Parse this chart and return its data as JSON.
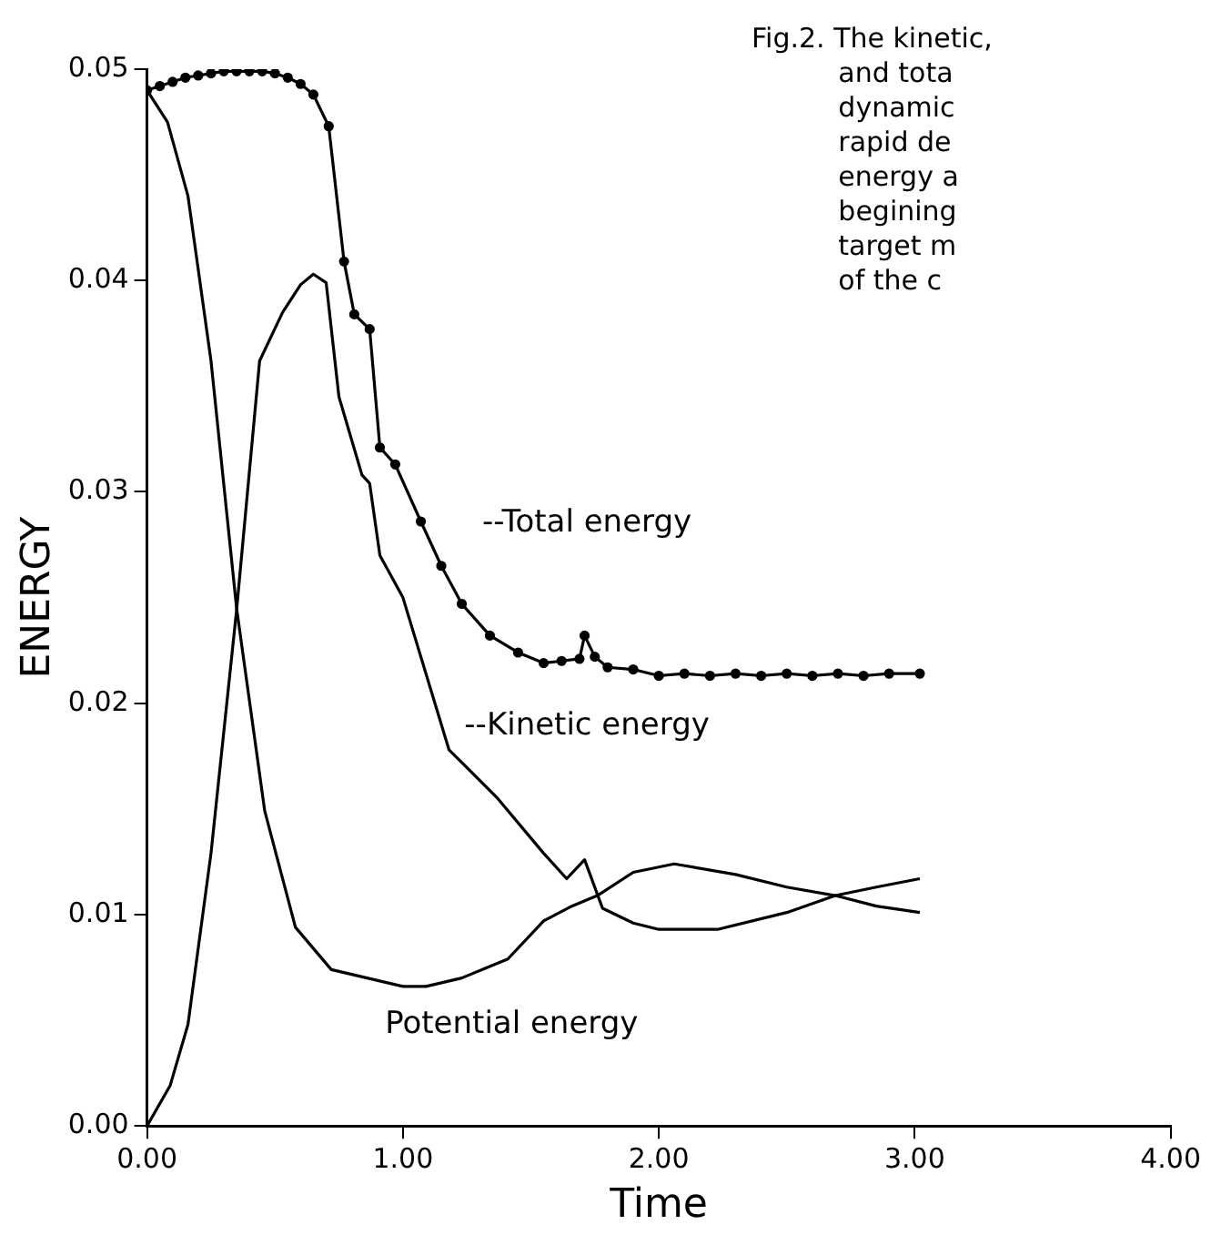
{
  "chart_data": {
    "type": "line",
    "xlabel": "Time",
    "ylabel": "ENERGY",
    "xlim": [
      0,
      4
    ],
    "ylim": [
      0,
      0.05
    ],
    "xticks": [
      {
        "value": 0,
        "label": "0.00"
      },
      {
        "value": 1,
        "label": "1.00"
      },
      {
        "value": 2,
        "label": "2.00"
      },
      {
        "value": 3,
        "label": "3.00"
      },
      {
        "value": 4,
        "label": "4.00"
      }
    ],
    "yticks": [
      {
        "value": 0,
        "label": "0.00"
      },
      {
        "value": 0.01,
        "label": "0.01"
      },
      {
        "value": 0.02,
        "label": "0.02"
      },
      {
        "value": 0.03,
        "label": "0.03"
      },
      {
        "value": 0.04,
        "label": "0.04"
      },
      {
        "value": 0.05,
        "label": "0.05"
      }
    ],
    "grid": false,
    "legend": false,
    "line_style": "solid",
    "annotations": [
      "Fig.2. The kinetic,\n          and tota\n          dynamic\n          rapid de\n          energy a\n          begining\n          target m\n          of the c"
    ],
    "series": [
      {
        "name": "--Total energy",
        "color": "#000000",
        "marker": "circle",
        "x": [
          0,
          0.05,
          0.1,
          0.15,
          0.2,
          0.25,
          0.3,
          0.35,
          0.4,
          0.45,
          0.5,
          0.55,
          0.6,
          0.65,
          0.71,
          0.77,
          0.81,
          0.87,
          0.91,
          0.97,
          1.07,
          1.15,
          1.23,
          1.34,
          1.45,
          1.55,
          1.62,
          1.69,
          1.71,
          1.75,
          1.8,
          1.9,
          2.0,
          2.1,
          2.2,
          2.3,
          2.4,
          2.5,
          2.6,
          2.7,
          2.8,
          2.9,
          3.02
        ],
        "values": [
          0.049,
          0.0492,
          0.0494,
          0.0496,
          0.0497,
          0.0498,
          0.0499,
          0.0499,
          0.0499,
          0.0499,
          0.0498,
          0.0496,
          0.0493,
          0.0488,
          0.0473,
          0.0409,
          0.0384,
          0.0377,
          0.0321,
          0.0313,
          0.0286,
          0.0265,
          0.0247,
          0.0232,
          0.0224,
          0.0219,
          0.022,
          0.0221,
          0.0232,
          0.0222,
          0.0217,
          0.0216,
          0.0213,
          0.0214,
          0.0213,
          0.0214,
          0.0213,
          0.0214,
          0.0213,
          0.0214,
          0.0213,
          0.0214,
          0.0214
        ]
      },
      {
        "name": "Potential energy",
        "color": "#000000",
        "x": [
          0,
          0.08,
          0.16,
          0.25,
          0.35,
          0.46,
          0.58,
          0.72,
          0.86,
          1.0,
          1.09,
          1.23,
          1.41,
          1.55,
          1.66,
          1.76,
          1.9,
          2.06,
          2.3,
          2.5,
          2.69,
          2.85,
          3.02
        ],
        "values": [
          0.049,
          0.0475,
          0.044,
          0.0362,
          0.0245,
          0.0149,
          0.0094,
          0.0074,
          0.007,
          0.0066,
          0.0066,
          0.007,
          0.0079,
          0.0097,
          0.0104,
          0.0109,
          0.012,
          0.0124,
          0.0119,
          0.0113,
          0.0109,
          0.0104,
          0.0101
        ]
      },
      {
        "name": "--Kinetic energy",
        "color": "#000000",
        "x": [
          0,
          0.09,
          0.16,
          0.25,
          0.35,
          0.44,
          0.53,
          0.6,
          0.65,
          0.7,
          0.75,
          0.84,
          0.87,
          0.91,
          1.0,
          1.18,
          1.37,
          1.55,
          1.64,
          1.71,
          1.78,
          1.9,
          2.0,
          2.23,
          2.5,
          2.69,
          2.85,
          3.02
        ],
        "values": [
          0,
          0.0019,
          0.0048,
          0.0129,
          0.0244,
          0.0362,
          0.0385,
          0.0398,
          0.0403,
          0.0399,
          0.0345,
          0.0308,
          0.0304,
          0.027,
          0.025,
          0.0178,
          0.0155,
          0.0129,
          0.0117,
          0.0126,
          0.0103,
          0.0096,
          0.0093,
          0.0093,
          0.0101,
          0.0109,
          0.0113,
          0.0117
        ]
      }
    ]
  }
}
